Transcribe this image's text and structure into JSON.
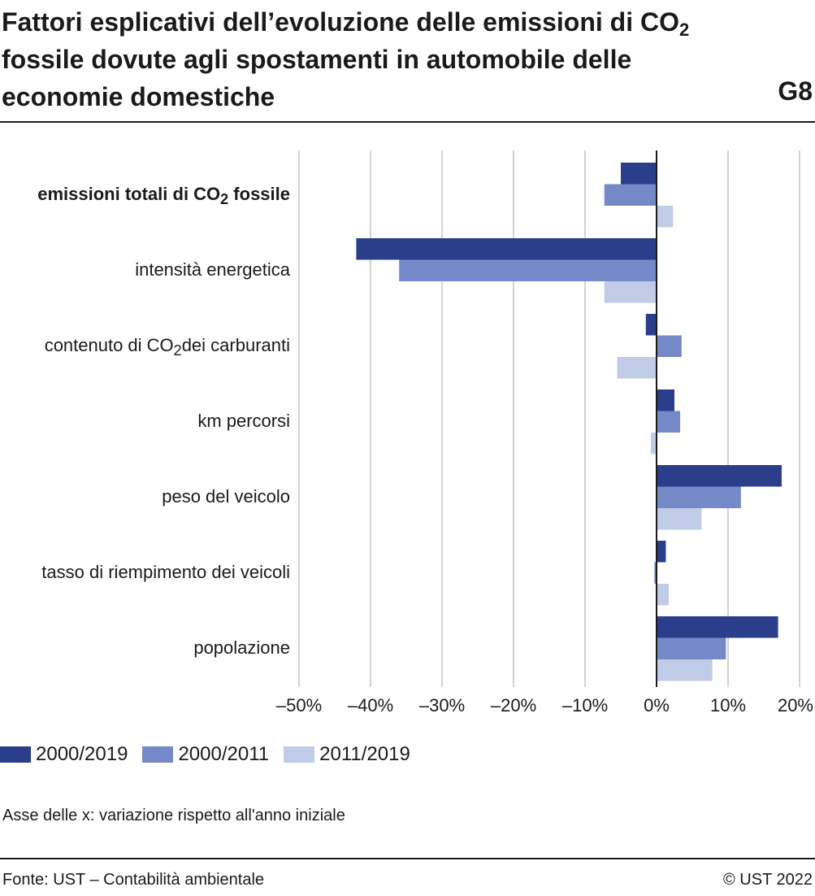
{
  "header": {
    "title_line1": "Fattori esplicativi dell’evoluzione delle emissioni di CO",
    "title_line1_sub": "2",
    "title_line2": "fossile dovute agli spostamenti in automobile delle",
    "title_line3": "economie domestiche",
    "chart_code": "G8"
  },
  "chart_data": {
    "type": "bar",
    "orientation": "horizontal",
    "categories": [
      "emissioni totali di CO2 fossile",
      "intensità energetica",
      "contenuto di CO2 dei carburanti",
      "km percorsi",
      "peso del veicolo",
      "tasso di riempimento dei veicoli",
      "popolazione"
    ],
    "category_label_parts": [
      {
        "pre": "emissioni totali di CO",
        "sub": "2",
        "post": " fossile",
        "bold": true
      },
      {
        "pre": "intensità energetica",
        "sub": "",
        "post": "",
        "bold": false
      },
      {
        "pre": "contenuto di CO",
        "sub": "2",
        "post": "dei carburanti",
        "bold": false
      },
      {
        "pre": "km percorsi",
        "sub": "",
        "post": "",
        "bold": false
      },
      {
        "pre": "peso del veicolo",
        "sub": "",
        "post": "",
        "bold": false
      },
      {
        "pre": "tasso di riempimento dei veicoli",
        "sub": "",
        "post": "",
        "bold": false
      },
      {
        "pre": "popolazione",
        "sub": "",
        "post": "",
        "bold": false
      }
    ],
    "series": [
      {
        "name": "2000/2019",
        "color": "#2b3e8c",
        "values": [
          -5.0,
          -42.0,
          -1.5,
          2.5,
          17.5,
          1.3,
          17.0
        ]
      },
      {
        "name": "2000/2011",
        "color": "#7588c8",
        "values": [
          -7.3,
          -36.0,
          3.5,
          3.3,
          11.8,
          -0.3,
          9.7
        ]
      },
      {
        "name": "2011/2019",
        "color": "#c0cbe8",
        "values": [
          2.3,
          -7.3,
          -5.5,
          -0.8,
          6.3,
          1.7,
          7.8
        ]
      }
    ],
    "xlim": [
      -50,
      20
    ],
    "xticks": [
      -50,
      -40,
      -30,
      -20,
      -10,
      0,
      10,
      20
    ],
    "xtick_labels": [
      "–50%",
      "–40%",
      "–30%",
      "–20%",
      "–10%",
      "0%",
      "10%",
      "20%"
    ],
    "grid": true,
    "legend_position": "bottom-left",
    "xlabel": "",
    "ylabel": ""
  },
  "footer": {
    "axis_note": "Asse delle x: variazione rispetto all'anno iniziale",
    "source": "Fonte: UST – Contabilità ambientale",
    "copyright": "© UST 2022"
  }
}
